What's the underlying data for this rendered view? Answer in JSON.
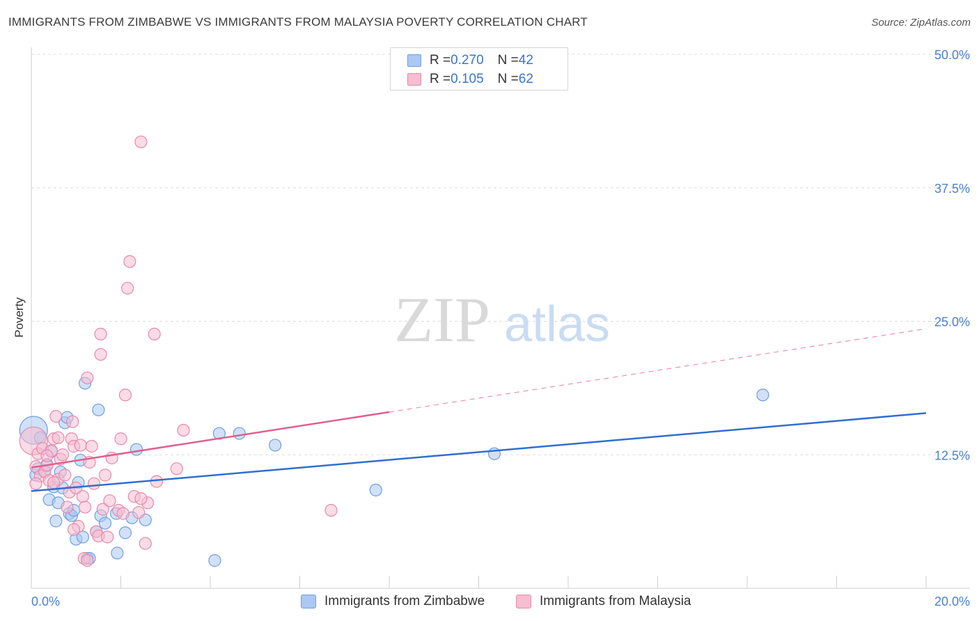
{
  "title": "IMMIGRANTS FROM ZIMBABWE VS IMMIGRANTS FROM MALAYSIA POVERTY CORRELATION CHART",
  "source": "Source: ZipAtlas.com",
  "watermark": {
    "zip": "ZIP",
    "atlas": "atlas"
  },
  "colors": {
    "blue": "#2f6fd0",
    "blue_fill": "#aac8f2",
    "pink": "#e0608f",
    "pink_fill": "#f7bdd0",
    "tick": "#4a7fd0"
  },
  "legend": {
    "rows": [
      {
        "r_label": "R = ",
        "r_value": "0.270",
        "n_label": "N = ",
        "n_value": "42"
      },
      {
        "r_label": "R = ",
        "r_value": "0.105",
        "n_label": "N = ",
        "n_value": "62"
      }
    ]
  },
  "chart_data": {
    "type": "scatter",
    "title": "IMMIGRANTS FROM ZIMBABWE VS IMMIGRANTS FROM MALAYSIA POVERTY CORRELATION CHART",
    "xlabel": "",
    "ylabel": "Poverty",
    "xlim": [
      0,
      20
    ],
    "ylim": [
      0,
      50
    ],
    "x_tick_labels": [
      "0.0%",
      "20.0%"
    ],
    "y_ticks": [
      12.5,
      25.0,
      37.5,
      50.0
    ],
    "y_tick_labels": [
      "12.5%",
      "25.0%",
      "37.5%",
      "50.0%"
    ],
    "grid": true,
    "series": [
      {
        "name": "Immigrants from Zimbabwe",
        "color": "#2f6fd0",
        "r": 0.27,
        "n": 42,
        "trend": {
          "x0": 0,
          "y0": 9.1,
          "x1": 20,
          "y1": 16.4,
          "solid_until": 20
        },
        "points": [
          {
            "x": 0.05,
            "y": 14.8,
            "big": true
          },
          {
            "x": 0.1,
            "y": 10.6
          },
          {
            "x": 0.15,
            "y": 11.2
          },
          {
            "x": 0.2,
            "y": 14.1
          },
          {
            "x": 0.3,
            "y": 11.0
          },
          {
            "x": 0.35,
            "y": 11.6
          },
          {
            "x": 0.4,
            "y": 8.3
          },
          {
            "x": 0.5,
            "y": 9.5
          },
          {
            "x": 0.55,
            "y": 6.3
          },
          {
            "x": 0.6,
            "y": 8.0
          },
          {
            "x": 0.7,
            "y": 9.4
          },
          {
            "x": 0.75,
            "y": 15.5
          },
          {
            "x": 0.8,
            "y": 16.0
          },
          {
            "x": 0.85,
            "y": 7.0
          },
          {
            "x": 0.9,
            "y": 6.8
          },
          {
            "x": 0.95,
            "y": 7.3
          },
          {
            "x": 1.0,
            "y": 4.6
          },
          {
            "x": 1.05,
            "y": 9.9
          },
          {
            "x": 1.1,
            "y": 12.0
          },
          {
            "x": 1.15,
            "y": 4.8
          },
          {
            "x": 1.2,
            "y": 19.2
          },
          {
            "x": 1.25,
            "y": 2.8
          },
          {
            "x": 1.3,
            "y": 2.8
          },
          {
            "x": 1.45,
            "y": 5.3
          },
          {
            "x": 1.5,
            "y": 16.7
          },
          {
            "x": 1.55,
            "y": 6.8
          },
          {
            "x": 1.65,
            "y": 6.1
          },
          {
            "x": 1.9,
            "y": 7.0
          },
          {
            "x": 1.92,
            "y": 3.3
          },
          {
            "x": 2.1,
            "y": 5.2
          },
          {
            "x": 2.25,
            "y": 6.6
          },
          {
            "x": 2.35,
            "y": 13.0
          },
          {
            "x": 2.55,
            "y": 6.4
          },
          {
            "x": 4.1,
            "y": 2.6
          },
          {
            "x": 4.2,
            "y": 14.5
          },
          {
            "x": 4.65,
            "y": 14.5
          },
          {
            "x": 5.45,
            "y": 13.4
          },
          {
            "x": 7.7,
            "y": 9.2
          },
          {
            "x": 10.35,
            "y": 12.6
          },
          {
            "x": 16.35,
            "y": 18.1
          },
          {
            "x": 0.45,
            "y": 12.8
          },
          {
            "x": 0.65,
            "y": 10.9
          }
        ]
      },
      {
        "name": "Immigrants from Malaysia",
        "color": "#e0608f",
        "r": 0.105,
        "n": 62,
        "trend": {
          "x0": 0,
          "y0": 11.3,
          "x1": 20,
          "y1": 24.3,
          "solid_until": 8.0
        },
        "points": [
          {
            "x": 0.05,
            "y": 13.8,
            "big": true
          },
          {
            "x": 0.1,
            "y": 11.4
          },
          {
            "x": 0.15,
            "y": 12.6
          },
          {
            "x": 0.2,
            "y": 10.5
          },
          {
            "x": 0.25,
            "y": 13.1
          },
          {
            "x": 0.3,
            "y": 10.9
          },
          {
            "x": 0.35,
            "y": 11.5
          },
          {
            "x": 0.4,
            "y": 10.1
          },
          {
            "x": 0.45,
            "y": 12.9
          },
          {
            "x": 0.5,
            "y": 14.0
          },
          {
            "x": 0.55,
            "y": 16.1
          },
          {
            "x": 0.6,
            "y": 10.2
          },
          {
            "x": 0.65,
            "y": 12.1
          },
          {
            "x": 0.7,
            "y": 12.5
          },
          {
            "x": 0.75,
            "y": 10.6
          },
          {
            "x": 0.8,
            "y": 7.6
          },
          {
            "x": 0.85,
            "y": 9.0
          },
          {
            "x": 0.9,
            "y": 14.0
          },
          {
            "x": 0.92,
            "y": 15.6
          },
          {
            "x": 0.95,
            "y": 13.3
          },
          {
            "x": 1.0,
            "y": 9.4
          },
          {
            "x": 1.05,
            "y": 5.8
          },
          {
            "x": 1.1,
            "y": 13.4
          },
          {
            "x": 1.15,
            "y": 8.6
          },
          {
            "x": 1.18,
            "y": 2.8
          },
          {
            "x": 1.2,
            "y": 7.6
          },
          {
            "x": 1.25,
            "y": 2.6
          },
          {
            "x": 1.3,
            "y": 11.8
          },
          {
            "x": 1.35,
            "y": 13.3
          },
          {
            "x": 1.4,
            "y": 9.8
          },
          {
            "x": 1.45,
            "y": 5.3
          },
          {
            "x": 1.5,
            "y": 4.9
          },
          {
            "x": 1.6,
            "y": 7.4
          },
          {
            "x": 1.7,
            "y": 4.8
          },
          {
            "x": 1.75,
            "y": 8.2
          },
          {
            "x": 1.8,
            "y": 12.2
          },
          {
            "x": 1.95,
            "y": 7.3
          },
          {
            "x": 2.0,
            "y": 14.0
          },
          {
            "x": 2.05,
            "y": 7.0
          },
          {
            "x": 2.15,
            "y": 28.1
          },
          {
            "x": 2.2,
            "y": 30.6
          },
          {
            "x": 2.3,
            "y": 8.6
          },
          {
            "x": 2.4,
            "y": 7.1
          },
          {
            "x": 2.45,
            "y": 41.8
          },
          {
            "x": 2.55,
            "y": 4.2
          },
          {
            "x": 2.6,
            "y": 8.0
          },
          {
            "x": 2.75,
            "y": 23.8
          },
          {
            "x": 2.8,
            "y": 10.0
          },
          {
            "x": 3.25,
            "y": 11.2
          },
          {
            "x": 3.4,
            "y": 14.8
          },
          {
            "x": 6.7,
            "y": 7.3
          },
          {
            "x": 1.55,
            "y": 21.9
          },
          {
            "x": 1.25,
            "y": 19.7
          },
          {
            "x": 1.55,
            "y": 23.8
          },
          {
            "x": 2.1,
            "y": 18.1
          },
          {
            "x": 0.6,
            "y": 14.1
          },
          {
            "x": 0.5,
            "y": 9.9
          },
          {
            "x": 1.65,
            "y": 10.6
          },
          {
            "x": 2.45,
            "y": 8.4
          },
          {
            "x": 0.35,
            "y": 12.4
          },
          {
            "x": 0.1,
            "y": 9.8
          },
          {
            "x": 0.95,
            "y": 5.5
          }
        ]
      }
    ]
  },
  "bottom_legend": [
    {
      "label": "Immigrants from Zimbabwe"
    },
    {
      "label": "Immigrants from Malaysia"
    }
  ]
}
